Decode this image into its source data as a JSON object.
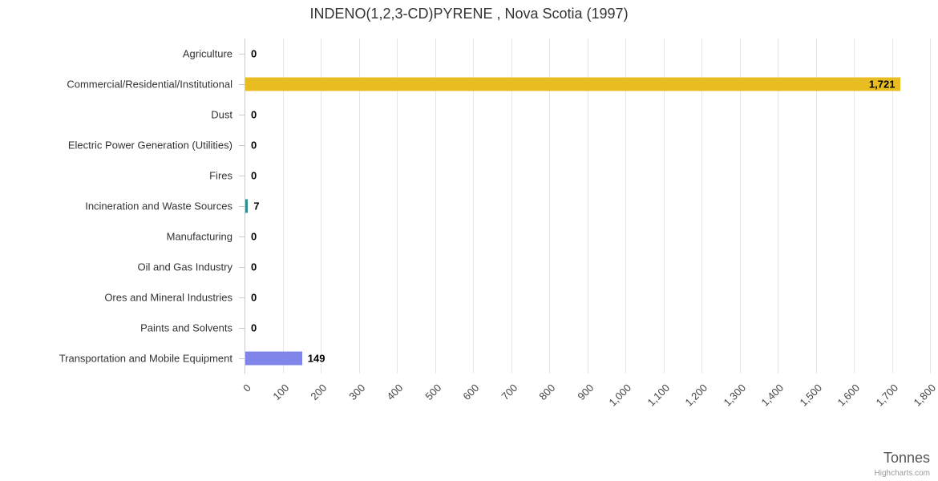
{
  "header": {
    "title": "INDENO(1,2,3-CD)PYRENE , Nova Scotia (1997)"
  },
  "chart_data": {
    "type": "bar",
    "orientation": "horizontal",
    "title": "INDENO(1,2,3-CD)PYRENE , Nova Scotia (1997)",
    "categories": [
      "Agriculture",
      "Commercial/Residential/Institutional",
      "Dust",
      "Electric Power Generation (Utilities)",
      "Fires",
      "Incineration and Waste Sources",
      "Manufacturing",
      "Oil and Gas Industry",
      "Ores and Mineral Industries",
      "Paints and Solvents",
      "Transportation and Mobile Equipment"
    ],
    "values": [
      0,
      1721,
      0,
      0,
      0,
      7,
      0,
      0,
      0,
      0,
      149
    ],
    "value_labels": [
      "0",
      "1,721",
      "0",
      "0",
      "0",
      "7",
      "0",
      "0",
      "0",
      "0",
      "149"
    ],
    "colors": [
      "#7cb5ec",
      "#e8bd21",
      "#90ed7d",
      "#f7a35c",
      "#434348",
      "#2b908f",
      "#f15c80",
      "#e4d354",
      "#f45b5b",
      "#91e8e1",
      "#8085e9"
    ],
    "xlabel": "Tonnes",
    "xlim": [
      0,
      1800
    ],
    "xticks": [
      {
        "value": 0,
        "label": "0"
      },
      {
        "value": 100,
        "label": "100"
      },
      {
        "value": 200,
        "label": "200"
      },
      {
        "value": 300,
        "label": "300"
      },
      {
        "value": 400,
        "label": "400"
      },
      {
        "value": 500,
        "label": "500"
      },
      {
        "value": 600,
        "label": "600"
      },
      {
        "value": 700,
        "label": "700"
      },
      {
        "value": 800,
        "label": "800"
      },
      {
        "value": 900,
        "label": "900"
      },
      {
        "value": 1000,
        "label": "1,000"
      },
      {
        "value": 1100,
        "label": "1,100"
      },
      {
        "value": 1200,
        "label": "1,200"
      },
      {
        "value": 1300,
        "label": "1,300"
      },
      {
        "value": 1400,
        "label": "1,400"
      },
      {
        "value": 1500,
        "label": "1,500"
      },
      {
        "value": 1600,
        "label": "1,600"
      },
      {
        "value": 1700,
        "label": "1,700"
      },
      {
        "value": 1800,
        "label": "1,800"
      }
    ],
    "grid": "vertical",
    "legend": "none",
    "credit": "Highcharts.com"
  }
}
